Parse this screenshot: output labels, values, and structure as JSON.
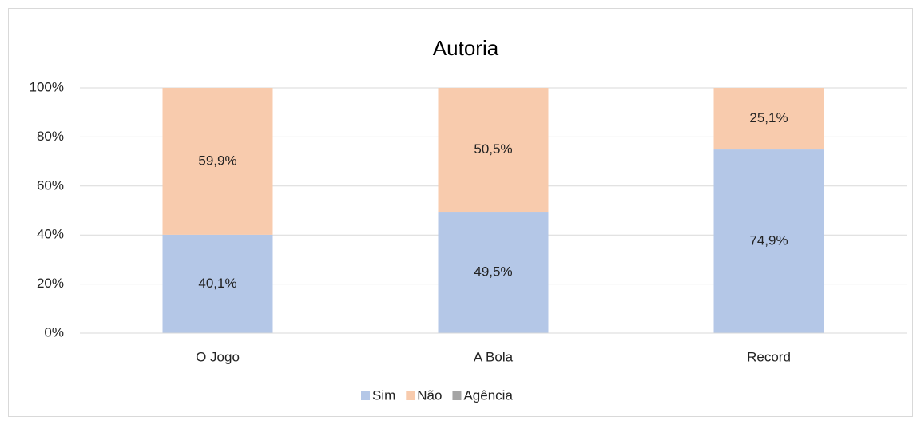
{
  "chart_data": {
    "type": "stacked_bar",
    "title": "Autoria",
    "categories": [
      "O Jogo",
      "A Bola",
      "Record"
    ],
    "series": [
      {
        "name": "Sim",
        "color": "#b4c7e7",
        "values": [
          40.1,
          49.5,
          74.9
        ],
        "value_labels": [
          "40,1%",
          "49,5%",
          "74,9%"
        ]
      },
      {
        "name": "Não",
        "color": "#f8cbad",
        "values": [
          59.9,
          50.5,
          25.1
        ],
        "value_labels": [
          "59,9%",
          "50,5%",
          "25,1%"
        ]
      },
      {
        "name": "Agência",
        "color": "#a5a5a5",
        "values": [
          0,
          0,
          0
        ]
      }
    ],
    "ylim": [
      0,
      100
    ],
    "yticks": [
      {
        "value": 0,
        "label": "0%"
      },
      {
        "value": 20,
        "label": "20%"
      },
      {
        "value": 40,
        "label": "40%"
      },
      {
        "value": 60,
        "label": "60%"
      },
      {
        "value": 80,
        "label": "80%"
      },
      {
        "value": 100,
        "label": "100%"
      }
    ],
    "grid": true,
    "legend": "bottom"
  }
}
